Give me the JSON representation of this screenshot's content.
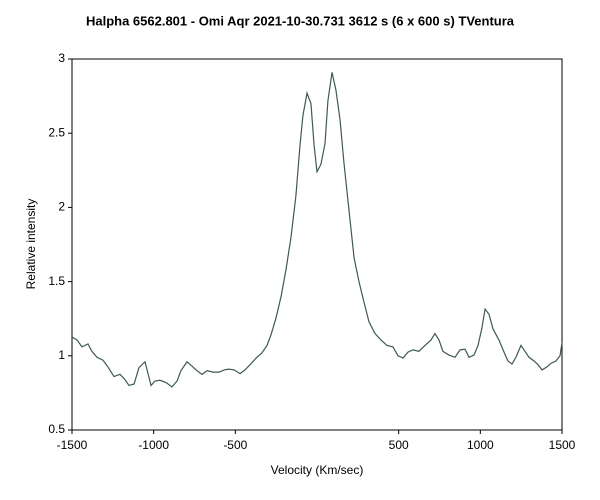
{
  "chart_data": {
    "type": "line",
    "title": "Halpha 6562.801 - Omi Aqr   2021-10-30.731   3612 s (6 x 600 s)   TVentura",
    "xlabel": "Velocity (Km/sec)",
    "ylabel": "Relative intensity",
    "x": [
      -1500,
      -1469,
      -1439,
      -1402,
      -1378,
      -1347,
      -1310,
      -1280,
      -1243,
      -1206,
      -1176,
      -1151,
      -1120,
      -1090,
      -1053,
      -1016,
      -992,
      -961,
      -924,
      -888,
      -857,
      -833,
      -796,
      -765,
      -735,
      -704,
      -673,
      -637,
      -600,
      -569,
      -539,
      -508,
      -471,
      -441,
      -410,
      -373,
      -337,
      -306,
      -282,
      -251,
      -220,
      -190,
      -159,
      -129,
      -104,
      -86,
      -61,
      -37,
      -18,
      0,
      24,
      49,
      67,
      92,
      116,
      141,
      165,
      196,
      227,
      257,
      288,
      318,
      355,
      392,
      429,
      465,
      496,
      527,
      557,
      588,
      624,
      661,
      698,
      722,
      747,
      771,
      808,
      845,
      876,
      906,
      931,
      961,
      986,
      1010,
      1029,
      1053,
      1078,
      1114,
      1145,
      1169,
      1194,
      1218,
      1249,
      1273,
      1298,
      1329,
      1353,
      1378,
      1408,
      1433,
      1463,
      1488,
      1500
    ],
    "series": [
      {
        "color": "#3d5a52",
        "values": [
          1.127,
          1.106,
          1.06,
          1.08,
          1.03,
          0.99,
          0.97,
          0.925,
          0.86,
          0.875,
          0.84,
          0.8,
          0.81,
          0.92,
          0.96,
          0.8,
          0.83,
          0.835,
          0.82,
          0.79,
          0.83,
          0.9,
          0.96,
          0.93,
          0.9,
          0.875,
          0.9,
          0.89,
          0.89,
          0.905,
          0.91,
          0.905,
          0.88,
          0.905,
          0.94,
          0.985,
          1.02,
          1.07,
          1.14,
          1.255,
          1.4,
          1.58,
          1.8,
          2.08,
          2.42,
          2.62,
          2.77,
          2.7,
          2.42,
          2.24,
          2.29,
          2.43,
          2.72,
          2.91,
          2.79,
          2.59,
          2.3,
          1.98,
          1.66,
          1.5,
          1.36,
          1.23,
          1.15,
          1.106,
          1.07,
          1.06,
          1.0,
          0.985,
          1.025,
          1.04,
          1.03,
          1.07,
          1.106,
          1.15,
          1.106,
          1.03,
          1.005,
          0.99,
          1.04,
          1.045,
          0.99,
          1.005,
          1.07,
          1.19,
          1.315,
          1.28,
          1.18,
          1.106,
          1.025,
          0.965,
          0.945,
          0.99,
          1.07,
          1.03,
          0.99,
          0.965,
          0.94,
          0.905,
          0.925,
          0.95,
          0.965,
          1.0,
          1.09
        ]
      }
    ],
    "xlim": [
      -1500,
      1500
    ],
    "xticks": [
      -1500,
      -1000,
      -500,
      500,
      1000,
      1500
    ],
    "ylim": [
      0.5,
      3
    ],
    "yticks": [
      0.5,
      1,
      1.5,
      2,
      2.5,
      3
    ]
  }
}
